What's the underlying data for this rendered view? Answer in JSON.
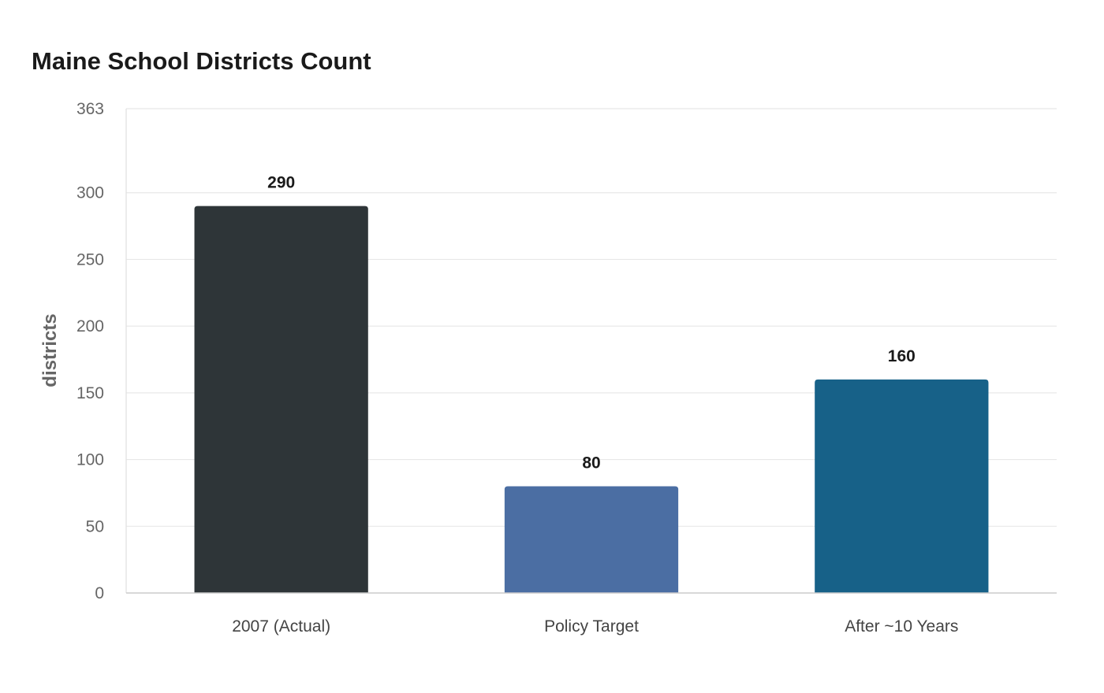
{
  "chart_data": {
    "type": "bar",
    "title": "Maine School Districts Count",
    "xlabel": "",
    "ylabel": "districts",
    "categories": [
      "2007 (Actual)",
      "Policy Target",
      "After ~10 Years"
    ],
    "values": [
      290,
      80,
      160
    ],
    "ylim": [
      0,
      363
    ],
    "yticks": [
      0,
      50,
      100,
      150,
      200,
      250,
      300,
      363
    ],
    "grid": true,
    "legend": "none",
    "colors": [
      "#2e3538",
      "#4b6ea3",
      "#176188"
    ]
  }
}
